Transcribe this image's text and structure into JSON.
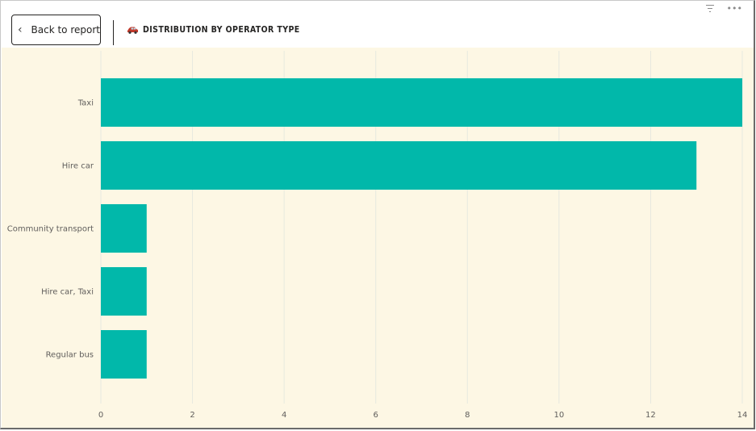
{
  "header": {
    "back_label": "Back to report",
    "title": "DISTRIBUTION BY OPERATOR TYPE",
    "title_icon": "car-icon",
    "top_icons": [
      "filter-icon",
      "more-options-icon"
    ]
  },
  "colors": {
    "bar": "#01b8aa",
    "chart_background": "#fdf7e4",
    "gridline": "#e6e8df",
    "label": "#605e5c"
  },
  "chart_data": {
    "type": "bar",
    "orientation": "horizontal",
    "categories": [
      "Taxi",
      "Hire car",
      "Community transport",
      "Hire car, Taxi",
      "Regular bus"
    ],
    "values": [
      14,
      13,
      1,
      1,
      1
    ],
    "xlim": [
      0,
      14
    ],
    "xticks": [
      "0",
      "2",
      "4",
      "6",
      "8",
      "10",
      "12",
      "14"
    ],
    "grid": true,
    "xlabel": "",
    "ylabel": ""
  }
}
